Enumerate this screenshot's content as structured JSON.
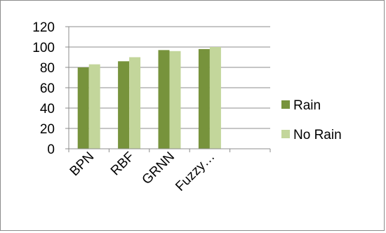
{
  "chart_data": {
    "type": "bar",
    "categories": [
      "BPN",
      "RBF",
      "GRNN",
      "Fuzzy…"
    ],
    "series": [
      {
        "name": "Rain",
        "values": [
          80,
          86,
          97,
          98
        ],
        "color": "#77933c"
      },
      {
        "name": "No Rain",
        "values": [
          83,
          90,
          96,
          100
        ],
        "color": "#c3d69b"
      }
    ],
    "title": "",
    "xlabel": "",
    "ylabel": "",
    "ylim": [
      0,
      120
    ],
    "yticks": [
      "0",
      "20",
      "40",
      "60",
      "80",
      "100",
      "120"
    ],
    "grid": true,
    "legend_position": "right"
  }
}
